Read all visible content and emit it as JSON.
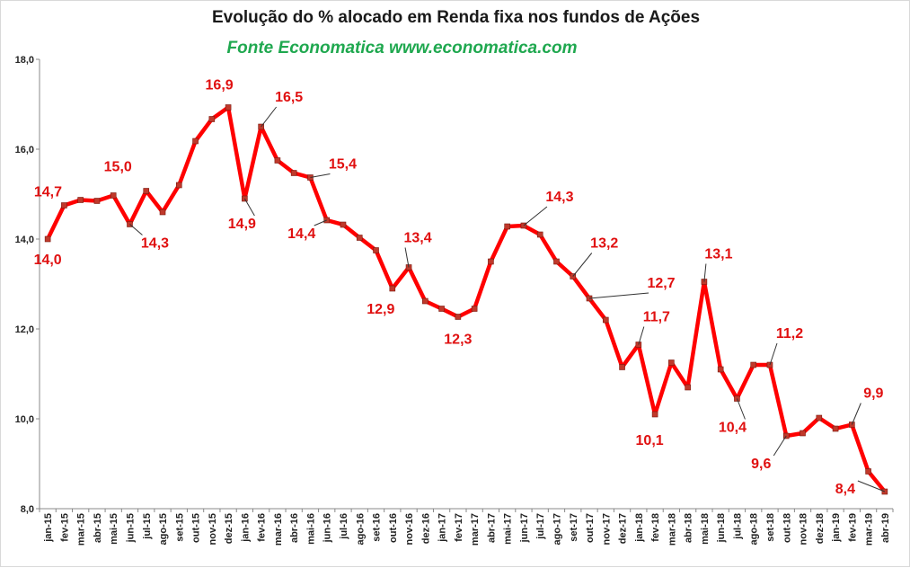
{
  "chart_data": {
    "type": "line",
    "title": "Evolução do %  alocado em Renda fixa nos fundos de Ações",
    "subtitle": "Fonte Economatica www.economatica.com",
    "xlabel": "",
    "ylabel": "",
    "ylim": [
      8.0,
      18.0
    ],
    "yticks": [
      "8,0",
      "10,0",
      "12,0",
      "14,0",
      "16,0",
      "18,0"
    ],
    "grid": false,
    "legend": "none",
    "colors": {
      "line": "#ff0000",
      "marker": "#c0392b",
      "label": "#e01010",
      "subtitle": "#1fa84f"
    },
    "categories": [
      "jan-15",
      "fev-15",
      "mar-15",
      "abr-15",
      "mai-15",
      "jun-15",
      "jul-15",
      "ago-15",
      "set-15",
      "out-15",
      "nov-15",
      "dez-15",
      "jan-16",
      "fev-16",
      "mar-16",
      "abr-16",
      "mai-16",
      "jun-16",
      "jul-16",
      "ago-16",
      "set-16",
      "out-16",
      "nov-16",
      "dez-16",
      "jan-17",
      "fev-17",
      "mar-17",
      "abr-17",
      "mai-17",
      "jun-17",
      "jul-17",
      "ago-17",
      "set-17",
      "out-17",
      "nov-17",
      "dez-17",
      "jan-18",
      "fev-18",
      "mar-18",
      "abr-18",
      "mai-18",
      "jun-18",
      "jul-18",
      "ago-18",
      "set-18",
      "out-18",
      "nov-18",
      "dez-18",
      "jan-19",
      "fev-19",
      "mar-19",
      "abr-19"
    ],
    "series": [
      {
        "values": [
          14.0,
          14.75,
          14.87,
          14.85,
          14.97,
          14.33,
          15.07,
          14.6,
          15.2,
          16.18,
          16.67,
          16.93,
          14.9,
          16.5,
          15.75,
          15.47,
          15.37,
          14.42,
          14.32,
          14.03,
          13.75,
          12.9,
          13.37,
          12.62,
          12.45,
          12.27,
          12.45,
          13.5,
          14.28,
          14.3,
          14.1,
          13.5,
          13.17,
          12.68,
          12.2,
          11.15,
          11.65,
          10.1,
          11.25,
          10.7,
          13.05,
          11.1,
          10.45,
          11.2,
          11.2,
          9.62,
          9.68,
          10.02,
          9.78,
          9.87,
          8.83,
          8.38
        ]
      }
    ],
    "annotations": [
      {
        "index": 0,
        "text": "14,0"
      },
      {
        "index": 1,
        "text": "14,7"
      },
      {
        "index": 4,
        "text": "15,0"
      },
      {
        "index": 5,
        "text": "14,3"
      },
      {
        "index": 11,
        "text": "16,9"
      },
      {
        "index": 12,
        "text": "14,9"
      },
      {
        "index": 13,
        "text": "16,5"
      },
      {
        "index": 16,
        "text": "15,4"
      },
      {
        "index": 17,
        "text": "14,4"
      },
      {
        "index": 21,
        "text": "12,9"
      },
      {
        "index": 22,
        "text": "13,4"
      },
      {
        "index": 25,
        "text": "12,3"
      },
      {
        "index": 29,
        "text": "14,3"
      },
      {
        "index": 32,
        "text": "13,2"
      },
      {
        "index": 33,
        "text": "12,7"
      },
      {
        "index": 36,
        "text": "11,7"
      },
      {
        "index": 37,
        "text": "10,1"
      },
      {
        "index": 40,
        "text": "13,1"
      },
      {
        "index": 42,
        "text": "10,4"
      },
      {
        "index": 44,
        "text": "11,2"
      },
      {
        "index": 45,
        "text": "9,6"
      },
      {
        "index": 49,
        "text": "9,9"
      },
      {
        "index": 51,
        "text": "8,4"
      }
    ]
  }
}
